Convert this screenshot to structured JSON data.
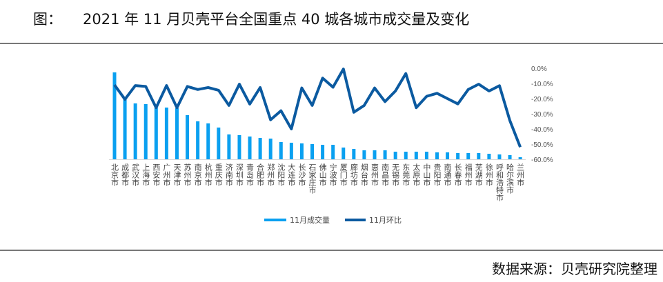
{
  "header": {
    "label": "图：",
    "title": "2021 年 11 月贝壳平台全国重点 40 城各城市成交量及变化"
  },
  "footer": {
    "source": "数据来源：贝壳研究院整理"
  },
  "chart_data": {
    "type": "bar+line",
    "categories": [
      "北京市",
      "成都市",
      "武汉市",
      "上海市",
      "西安市",
      "广州市",
      "天津市",
      "苏州市",
      "南京市",
      "杭州市",
      "重庆市",
      "济南市",
      "深圳市",
      "青岛市",
      "合肥市",
      "郑州市",
      "沈阳市",
      "大连市",
      "长沙市",
      "石家庄市",
      "佛山市",
      "宁波市",
      "厦门市",
      "廊坊市",
      "烟台市",
      "惠州市",
      "南昌市",
      "无锡市",
      "东莞市",
      "太原市",
      "中山市",
      "贵阳市",
      "南通市",
      "长春市",
      "福州市",
      "芜湖市",
      "徐州市",
      "呼和浩特市",
      "哈尔滨市",
      "兰州市"
    ],
    "series": [
      {
        "name": "11月成交量",
        "type": "bar",
        "axis": "left-hidden",
        "color": "#0aa0f0",
        "values": [
          126,
          88,
          81,
          80,
          75,
          75,
          74,
          64,
          55,
          52,
          46,
          36,
          35,
          33,
          31,
          30,
          25,
          24,
          23,
          22,
          21,
          21,
          17,
          15,
          13,
          13,
          13,
          11,
          11,
          11,
          11,
          10,
          10,
          9,
          9,
          9,
          8,
          7,
          6,
          3
        ]
      },
      {
        "name": "11月环比",
        "type": "line",
        "axis": "right",
        "color": "#0b5aa0",
        "values": [
          -11,
          -20.5,
          -11.4,
          -12,
          -26,
          -11.4,
          -26,
          -12,
          -14,
          -12.7,
          -14.5,
          -24.5,
          -10.5,
          -23.6,
          -12.7,
          -34,
          -28,
          -40,
          -13,
          -24.5,
          -6.5,
          -12.5,
          -0.5,
          -29,
          -24.5,
          -13,
          -22,
          -15,
          -3.5,
          -26,
          -18.5,
          -16.5,
          -20,
          -23.5,
          -14,
          -10.5,
          -15,
          -11.5,
          -34.5,
          -52
        ]
      }
    ],
    "y2_ticks": [
      "0.0%",
      "-10.0%",
      "-20.0%",
      "-30.0%",
      "-40.0%",
      "-50.0%",
      "-60.0%"
    ],
    "y2lim": [
      -60,
      0
    ],
    "legend": "bottom-center",
    "grid": false
  }
}
